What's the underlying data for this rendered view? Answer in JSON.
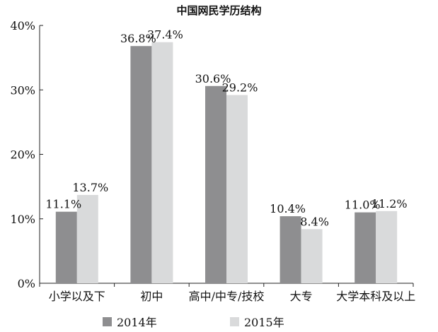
{
  "chart_data": {
    "type": "bar",
    "title": "中国网民学历结构",
    "categories": [
      "小学以及下",
      "初中",
      "高中/中专/技校",
      "大专",
      "大学本科及以上"
    ],
    "series": [
      {
        "name": "2014年",
        "values": [
          11.1,
          36.8,
          30.6,
          10.4,
          11.0
        ],
        "labels": [
          "11.1%",
          "36.8%",
          "30.6%",
          "10.4%",
          "11.0%"
        ],
        "color": "#8e8e90"
      },
      {
        "name": "2015年",
        "values": [
          13.7,
          37.4,
          29.2,
          8.4,
          11.2
        ],
        "labels": [
          "13.7%",
          "37.4%",
          "29.2%",
          "8.4%",
          "11.2%"
        ],
        "color": "#d9dadb"
      }
    ],
    "ylim": [
      0,
      40
    ],
    "yticks": [
      0,
      10,
      20,
      30,
      40
    ],
    "ytick_labels": [
      "0%",
      "10%",
      "20%",
      "30%",
      "40%"
    ],
    "xlabel": "",
    "ylabel": "",
    "grid": false,
    "legend_position": "bottom"
  }
}
